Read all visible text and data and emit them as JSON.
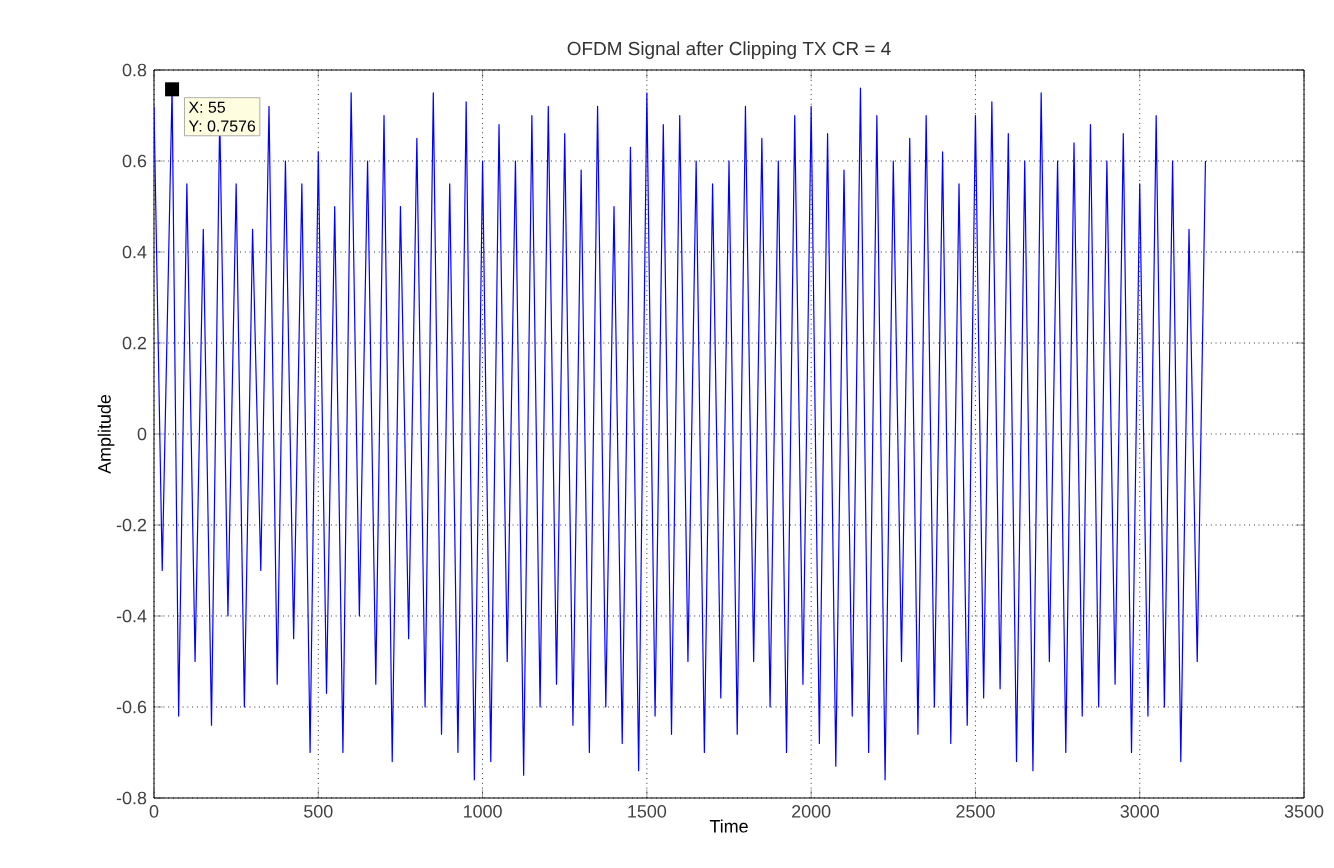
{
  "chart_data": {
    "type": "line",
    "title": "OFDM Signal after Clipping TX CR = 4",
    "xlabel": "Time",
    "ylabel": "Amplitude",
    "xlim": [
      0,
      3500
    ],
    "xticks": [
      0,
      500,
      1000,
      1500,
      2000,
      2500,
      3000,
      3500
    ],
    "ylim": [
      -0.8,
      0.8
    ],
    "yticks": [
      -0.8,
      -0.6,
      -0.4,
      -0.2,
      0,
      0.2,
      0.4,
      0.6,
      0.8
    ],
    "grid": true,
    "annotations": [
      {
        "text": "X: 55",
        "x": 55,
        "y": 0.7576
      },
      "Y: 0.7576"
    ],
    "series": [
      {
        "color": "#0000ff",
        "x": [
          0,
          25,
          55,
          75,
          100,
          125,
          150,
          175,
          200,
          225,
          250,
          275,
          300,
          325,
          350,
          375,
          400,
          425,
          450,
          475,
          500,
          525,
          550,
          575,
          600,
          625,
          650,
          675,
          700,
          725,
          750,
          775,
          800,
          825,
          850,
          875,
          900,
          925,
          950,
          975,
          1000,
          1025,
          1050,
          1075,
          1100,
          1125,
          1150,
          1175,
          1200,
          1225,
          1250,
          1275,
          1300,
          1325,
          1350,
          1375,
          1400,
          1425,
          1450,
          1475,
          1500,
          1525,
          1550,
          1575,
          1600,
          1625,
          1650,
          1675,
          1700,
          1725,
          1750,
          1775,
          1800,
          1825,
          1850,
          1875,
          1900,
          1925,
          1950,
          1975,
          2000,
          2025,
          2050,
          2075,
          2100,
          2125,
          2150,
          2175,
          2200,
          2225,
          2250,
          2275,
          2300,
          2325,
          2350,
          2375,
          2400,
          2425,
          2450,
          2475,
          2500,
          2525,
          2550,
          2575,
          2600,
          2625,
          2650,
          2675,
          2700,
          2725,
          2750,
          2775,
          2800,
          2825,
          2850,
          2875,
          2900,
          2925,
          2950,
          2975,
          3000,
          3025,
          3050,
          3075,
          3100,
          3125,
          3150,
          3175,
          3200
        ],
        "values": [
          0.72,
          -0.3,
          0.76,
          -0.62,
          0.55,
          -0.5,
          0.45,
          -0.64,
          0.7,
          -0.4,
          0.55,
          -0.6,
          0.45,
          -0.3,
          0.72,
          -0.55,
          0.6,
          -0.45,
          0.55,
          -0.7,
          0.62,
          -0.57,
          0.5,
          -0.7,
          0.75,
          -0.4,
          0.6,
          -0.55,
          0.7,
          -0.72,
          0.5,
          -0.45,
          0.65,
          -0.6,
          0.75,
          -0.66,
          0.55,
          -0.7,
          0.73,
          -0.76,
          0.6,
          -0.72,
          0.68,
          -0.5,
          0.6,
          -0.75,
          0.7,
          -0.6,
          0.72,
          -0.55,
          0.66,
          -0.64,
          0.58,
          -0.7,
          0.72,
          -0.6,
          0.5,
          -0.68,
          0.63,
          -0.74,
          0.75,
          -0.62,
          0.68,
          -0.66,
          0.7,
          -0.5,
          0.6,
          -0.7,
          0.55,
          -0.58,
          0.6,
          -0.66,
          0.72,
          -0.5,
          0.65,
          -0.6,
          0.6,
          -0.7,
          0.7,
          -0.55,
          0.72,
          -0.68,
          0.66,
          -0.73,
          0.58,
          -0.62,
          0.76,
          -0.7,
          0.7,
          -0.76,
          0.6,
          -0.5,
          0.65,
          -0.66,
          0.7,
          -0.6,
          0.62,
          -0.68,
          0.55,
          -0.64,
          0.7,
          -0.58,
          0.73,
          -0.56,
          0.66,
          -0.72,
          0.6,
          -0.74,
          0.75,
          -0.5,
          0.6,
          -0.7,
          0.64,
          -0.62,
          0.68,
          -0.6,
          0.6,
          -0.55,
          0.66,
          -0.7,
          0.55,
          -0.62,
          0.7,
          -0.6,
          0.6,
          -0.72,
          0.45,
          -0.5,
          0.6
        ]
      }
    ]
  }
}
